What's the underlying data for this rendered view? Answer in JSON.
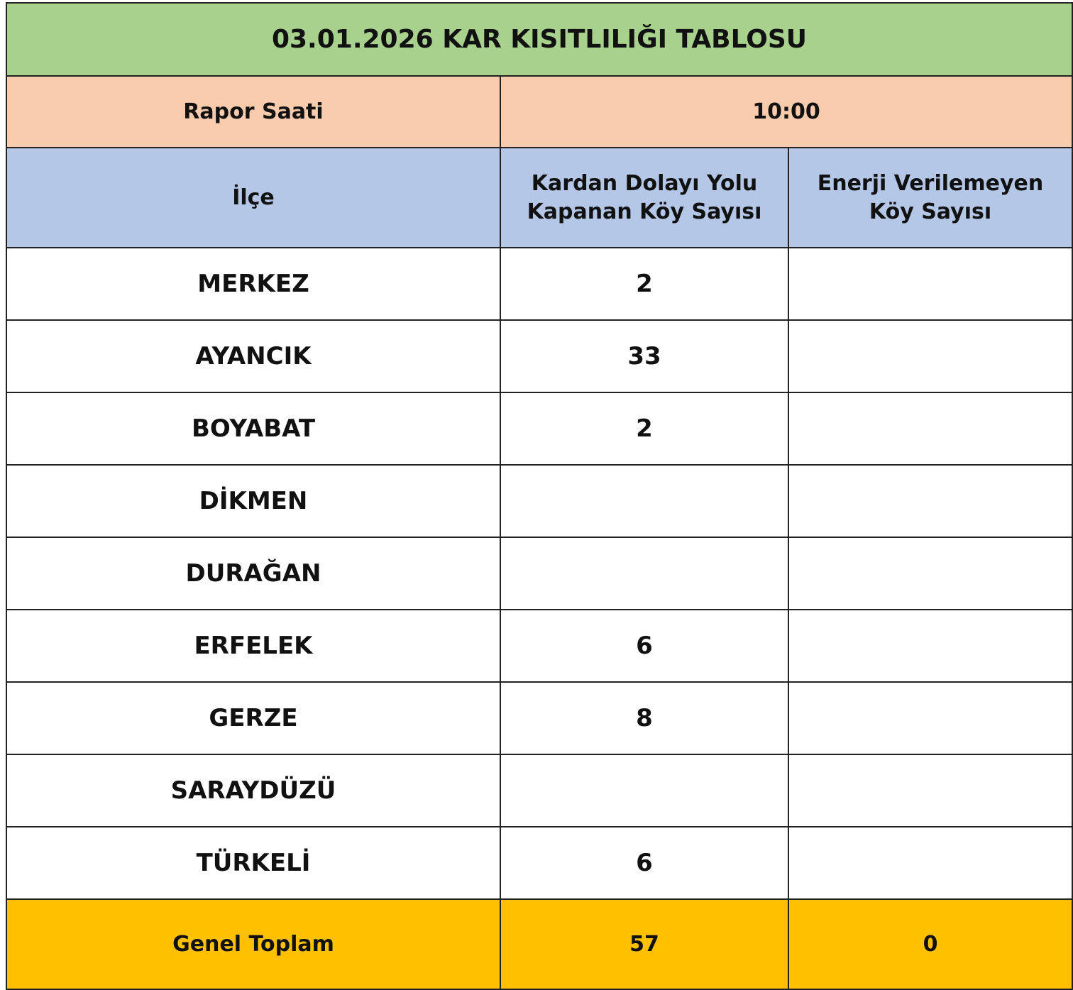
{
  "title": "03.01.2026 KAR KISITLILIĞI TABLOSU",
  "report": {
    "label": "Rapor Saati",
    "time": "10:00"
  },
  "headers": {
    "district": "İlçe",
    "closed_roads_line1": "Kardan Dolayı Yolu",
    "closed_roads_line2": "Kapanan Köy Sayısı",
    "no_power_line1": "Enerji Verilemeyen",
    "no_power_line2": "Köy Sayısı"
  },
  "rows": [
    {
      "district": "MERKEZ",
      "closed": "2",
      "no_power": ""
    },
    {
      "district": "AYANCIK",
      "closed": "33",
      "no_power": ""
    },
    {
      "district": "BOYABAT",
      "closed": "2",
      "no_power": ""
    },
    {
      "district": "DİKMEN",
      "closed": "",
      "no_power": ""
    },
    {
      "district": "DURAĞAN",
      "closed": "",
      "no_power": ""
    },
    {
      "district": "ERFELEK",
      "closed": "6",
      "no_power": ""
    },
    {
      "district": "GERZE",
      "closed": "8",
      "no_power": ""
    },
    {
      "district": "SARAYDÜZÜ",
      "closed": "",
      "no_power": ""
    },
    {
      "district": "TÜRKELİ",
      "closed": "6",
      "no_power": ""
    }
  ],
  "total": {
    "label": "Genel Toplam",
    "closed": "57",
    "no_power": "0"
  },
  "colors": {
    "title_bg": "#a9d18e",
    "report_bg": "#f8cbad",
    "header_bg": "#b4c7e7",
    "total_bg": "#ffc000"
  }
}
